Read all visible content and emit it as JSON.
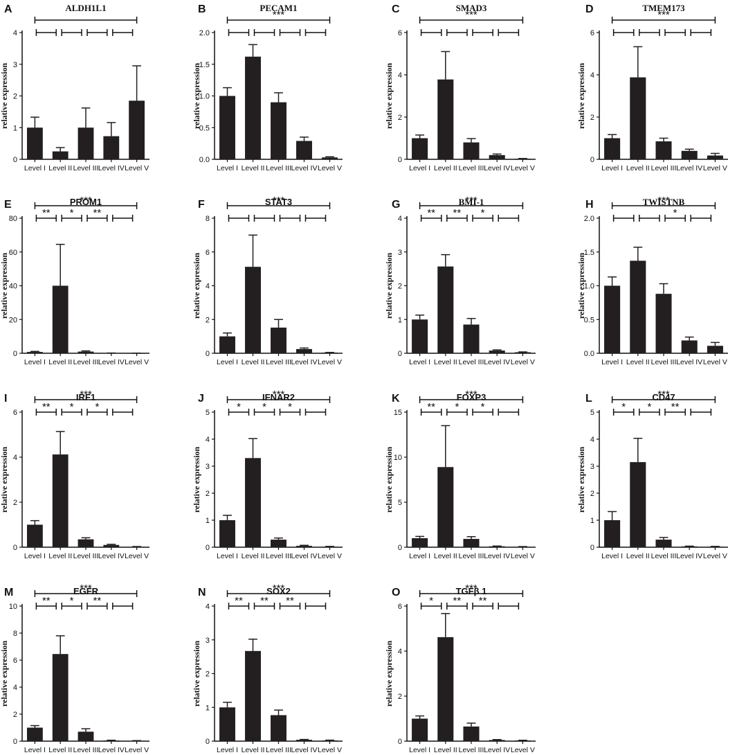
{
  "chart_data": [
    {
      "panel": "A",
      "type": "bar",
      "title": "ALDH1L1",
      "ylabel": "relative expression",
      "categories": [
        "Level I",
        "Level II",
        "Level III",
        "Level IV",
        "Level V"
      ],
      "values": [
        1.0,
        0.25,
        1.0,
        0.73,
        1.85
      ],
      "errors": [
        0.33,
        0.12,
        0.62,
        0.43,
        1.1
      ],
      "ylim": [
        0,
        4
      ],
      "yticks": [
        "0",
        "1",
        "2",
        "3",
        "4"
      ],
      "comparisons": [
        {
          "from": 0,
          "to": 4,
          "label": ""
        },
        {
          "from": 0,
          "to": 1,
          "label": ""
        },
        {
          "from": 1,
          "to": 2,
          "label": ""
        },
        {
          "from": 2,
          "to": 3,
          "label": ""
        },
        {
          "from": 3,
          "to": 4,
          "label": ""
        }
      ]
    },
    {
      "panel": "B",
      "type": "bar",
      "title": "PECAM1",
      "ylabel": "relative expression",
      "categories": [
        "Level I",
        "Level II",
        "Level III",
        "Level IV",
        "Level V"
      ],
      "values": [
        1.0,
        1.62,
        0.9,
        0.29,
        0.03
      ],
      "errors": [
        0.13,
        0.19,
        0.15,
        0.06,
        0.01
      ],
      "ylim": [
        0,
        2.0
      ],
      "yticks": [
        "0.0",
        "0.5",
        "1.0",
        "1.5",
        "2.0"
      ],
      "comparisons": [
        {
          "from": 0,
          "to": 4,
          "label": "***"
        },
        {
          "from": 0,
          "to": 1,
          "label": ""
        },
        {
          "from": 1,
          "to": 2,
          "label": ""
        },
        {
          "from": 2,
          "to": 3,
          "label": ""
        },
        {
          "from": 3,
          "to": 4,
          "label": ""
        }
      ]
    },
    {
      "panel": "C",
      "type": "bar",
      "title": "SMAD3",
      "ylabel": "relative expression",
      "categories": [
        "Level I",
        "Level II",
        "Level III",
        "Level IV",
        "Level V"
      ],
      "values": [
        1.0,
        3.78,
        0.8,
        0.2,
        0.03
      ],
      "errors": [
        0.15,
        1.32,
        0.18,
        0.05,
        0.01
      ],
      "ylim": [
        0,
        6
      ],
      "yticks": [
        "0",
        "2",
        "4",
        "6"
      ],
      "comparisons": [
        {
          "from": 0,
          "to": 4,
          "label": "***"
        },
        {
          "from": 0,
          "to": 1,
          "label": ""
        },
        {
          "from": 1,
          "to": 2,
          "label": ""
        },
        {
          "from": 2,
          "to": 3,
          "label": ""
        },
        {
          "from": 3,
          "to": 4,
          "label": ""
        }
      ]
    },
    {
      "panel": "D",
      "type": "bar",
      "title": "TMEM173",
      "ylabel": "relative expression",
      "categories": [
        "Level I",
        "Level II",
        "Level III",
        "Level IV",
        "Level V"
      ],
      "values": [
        1.0,
        3.88,
        0.85,
        0.4,
        0.18
      ],
      "errors": [
        0.17,
        1.45,
        0.15,
        0.08,
        0.1
      ],
      "ylim": [
        0,
        6
      ],
      "yticks": [
        "0",
        "2",
        "4",
        "6"
      ],
      "comparisons": [
        {
          "from": 0,
          "to": 4,
          "label": "***"
        },
        {
          "from": 0,
          "to": 1,
          "label": ""
        },
        {
          "from": 1,
          "to": 2,
          "label": ""
        },
        {
          "from": 2,
          "to": 3,
          "label": ""
        },
        {
          "from": 3,
          "to": 4,
          "label": ""
        }
      ]
    },
    {
      "panel": "E",
      "type": "bar",
      "title": "PROM1",
      "ylabel": "relative expression",
      "categories": [
        "Level I",
        "Level II",
        "Level III",
        "Level IV",
        "Level V"
      ],
      "values": [
        0.8,
        40,
        1.0,
        0.1,
        0.05
      ],
      "errors": [
        0.3,
        24.5,
        0.4,
        0.05,
        0.02
      ],
      "ylim": [
        0,
        80
      ],
      "yticks": [
        "0",
        "20",
        "40",
        "60",
        "80"
      ],
      "comparisons": [
        {
          "from": 0,
          "to": 4,
          "label": "***"
        },
        {
          "from": 0,
          "to": 1,
          "label": "**"
        },
        {
          "from": 1,
          "to": 2,
          "label": "*"
        },
        {
          "from": 2,
          "to": 3,
          "label": "**"
        },
        {
          "from": 3,
          "to": 4,
          "label": ""
        }
      ]
    },
    {
      "panel": "F",
      "type": "bar",
      "title": "STAT3",
      "ylabel": "relative expression",
      "categories": [
        "Level I",
        "Level II",
        "Level III",
        "Level IV",
        "Level V"
      ],
      "values": [
        1.0,
        5.12,
        1.52,
        0.25,
        0.04
      ],
      "errors": [
        0.2,
        1.88,
        0.48,
        0.06,
        0.01
      ],
      "ylim": [
        0,
        8
      ],
      "yticks": [
        "0",
        "2",
        "4",
        "6",
        "8"
      ],
      "comparisons": [
        {
          "from": 0,
          "to": 4,
          "label": "***"
        },
        {
          "from": 0,
          "to": 1,
          "label": ""
        },
        {
          "from": 1,
          "to": 2,
          "label": ""
        },
        {
          "from": 2,
          "to": 3,
          "label": ""
        },
        {
          "from": 3,
          "to": 4,
          "label": ""
        }
      ]
    },
    {
      "panel": "G",
      "type": "bar",
      "title": "BMI-1",
      "ylabel": "relative expression",
      "categories": [
        "Level I",
        "Level II",
        "Level III",
        "Level IV",
        "Level V"
      ],
      "values": [
        1.0,
        2.57,
        0.85,
        0.08,
        0.03
      ],
      "errors": [
        0.13,
        0.35,
        0.18,
        0.02,
        0.01
      ],
      "ylim": [
        0,
        4
      ],
      "yticks": [
        "0",
        "1",
        "2",
        "3",
        "4"
      ],
      "comparisons": [
        {
          "from": 0,
          "to": 4,
          "label": "***"
        },
        {
          "from": 0,
          "to": 1,
          "label": "**"
        },
        {
          "from": 1,
          "to": 2,
          "label": "**"
        },
        {
          "from": 2,
          "to": 3,
          "label": "*"
        },
        {
          "from": 3,
          "to": 4,
          "label": ""
        }
      ]
    },
    {
      "panel": "H",
      "type": "bar",
      "title": "TWISTNB",
      "ylabel": "relative expression",
      "categories": [
        "Level I",
        "Level II",
        "Level III",
        "Level IV",
        "Level V"
      ],
      "values": [
        1.0,
        1.37,
        0.88,
        0.19,
        0.11
      ],
      "errors": [
        0.13,
        0.2,
        0.15,
        0.05,
        0.05
      ],
      "ylim": [
        0,
        2.0
      ],
      "yticks": [
        "0.0",
        "0.5",
        "1.0",
        "1.5",
        "2.0"
      ],
      "comparisons": [
        {
          "from": 0,
          "to": 4,
          "label": "***"
        },
        {
          "from": 0,
          "to": 1,
          "label": ""
        },
        {
          "from": 1,
          "to": 2,
          "label": ""
        },
        {
          "from": 2,
          "to": 3,
          "label": "*"
        },
        {
          "from": 3,
          "to": 4,
          "label": ""
        }
      ]
    },
    {
      "panel": "I",
      "type": "bar",
      "title": "IRF1",
      "ylabel": "relative expression",
      "categories": [
        "Level I",
        "Level II",
        "Level III",
        "Level IV",
        "Level V"
      ],
      "values": [
        1.0,
        4.12,
        0.35,
        0.1,
        0.02
      ],
      "errors": [
        0.18,
        1.02,
        0.07,
        0.03,
        0.01
      ],
      "ylim": [
        0,
        6
      ],
      "yticks": [
        "0",
        "2",
        "4",
        "6"
      ],
      "comparisons": [
        {
          "from": 0,
          "to": 4,
          "label": "***"
        },
        {
          "from": 0,
          "to": 1,
          "label": "**"
        },
        {
          "from": 1,
          "to": 2,
          "label": "*"
        },
        {
          "from": 2,
          "to": 3,
          "label": "*"
        },
        {
          "from": 3,
          "to": 4,
          "label": ""
        }
      ]
    },
    {
      "panel": "J",
      "type": "bar",
      "title": "IFNAR2",
      "ylabel": "relative expression",
      "categories": [
        "Level I",
        "Level II",
        "Level III",
        "Level IV",
        "Level V"
      ],
      "values": [
        1.0,
        3.3,
        0.28,
        0.05,
        0.02
      ],
      "errors": [
        0.18,
        0.72,
        0.06,
        0.02,
        0.01
      ],
      "ylim": [
        0,
        5
      ],
      "yticks": [
        "0",
        "1",
        "2",
        "3",
        "4",
        "5"
      ],
      "comparisons": [
        {
          "from": 0,
          "to": 4,
          "label": "***"
        },
        {
          "from": 0,
          "to": 1,
          "label": "*"
        },
        {
          "from": 1,
          "to": 2,
          "label": "*"
        },
        {
          "from": 2,
          "to": 3,
          "label": "*"
        },
        {
          "from": 3,
          "to": 4,
          "label": ""
        }
      ]
    },
    {
      "panel": "K",
      "type": "bar",
      "title": "FOXP3",
      "ylabel": "relative expression",
      "categories": [
        "Level I",
        "Level II",
        "Level III",
        "Level IV",
        "Level V"
      ],
      "values": [
        1.0,
        8.9,
        0.92,
        0.1,
        0.05
      ],
      "errors": [
        0.2,
        4.6,
        0.25,
        0.03,
        0.02
      ],
      "ylim": [
        0,
        15
      ],
      "yticks": [
        "0",
        "5",
        "10",
        "15"
      ],
      "comparisons": [
        {
          "from": 0,
          "to": 4,
          "label": "***"
        },
        {
          "from": 0,
          "to": 1,
          "label": "**"
        },
        {
          "from": 1,
          "to": 2,
          "label": "*"
        },
        {
          "from": 2,
          "to": 3,
          "label": "*"
        },
        {
          "from": 3,
          "to": 4,
          "label": ""
        }
      ]
    },
    {
      "panel": "L",
      "type": "bar",
      "title": "CD47",
      "ylabel": "relative expression",
      "categories": [
        "Level I",
        "Level II",
        "Level III",
        "Level IV",
        "Level V"
      ],
      "values": [
        1.0,
        3.15,
        0.28,
        0.03,
        0.02
      ],
      "errors": [
        0.32,
        0.88,
        0.08,
        0.01,
        0.01
      ],
      "ylim": [
        0,
        5
      ],
      "yticks": [
        "0",
        "1",
        "2",
        "3",
        "4",
        "5"
      ],
      "comparisons": [
        {
          "from": 0,
          "to": 4,
          "label": "***"
        },
        {
          "from": 0,
          "to": 1,
          "label": "*"
        },
        {
          "from": 1,
          "to": 2,
          "label": "*"
        },
        {
          "from": 2,
          "to": 3,
          "label": "**"
        },
        {
          "from": 3,
          "to": 4,
          "label": ""
        }
      ]
    },
    {
      "panel": "M",
      "type": "bar",
      "title": "EGFR",
      "ylabel": "relative expression",
      "categories": [
        "Level I",
        "Level II",
        "Level III",
        "Level IV",
        "Level V"
      ],
      "values": [
        1.0,
        6.45,
        0.7,
        0.05,
        0.03
      ],
      "errors": [
        0.15,
        1.35,
        0.22,
        0.02,
        0.01
      ],
      "ylim": [
        0,
        10
      ],
      "yticks": [
        "0",
        "2",
        "4",
        "6",
        "8",
        "10"
      ],
      "comparisons": [
        {
          "from": 0,
          "to": 4,
          "label": "***"
        },
        {
          "from": 0,
          "to": 1,
          "label": "**"
        },
        {
          "from": 1,
          "to": 2,
          "label": "*"
        },
        {
          "from": 2,
          "to": 3,
          "label": "**"
        },
        {
          "from": 3,
          "to": 4,
          "label": ""
        }
      ]
    },
    {
      "panel": "N",
      "type": "bar",
      "title": "SOX2",
      "ylabel": "relative expression",
      "categories": [
        "Level I",
        "Level II",
        "Level III",
        "Level IV",
        "Level V"
      ],
      "values": [
        1.0,
        2.67,
        0.77,
        0.04,
        0.02
      ],
      "errors": [
        0.15,
        0.35,
        0.15,
        0.01,
        0.01
      ],
      "ylim": [
        0,
        4
      ],
      "yticks": [
        "0",
        "1",
        "2",
        "3",
        "4"
      ],
      "comparisons": [
        {
          "from": 0,
          "to": 4,
          "label": "***"
        },
        {
          "from": 0,
          "to": 1,
          "label": "**"
        },
        {
          "from": 1,
          "to": 2,
          "label": "**"
        },
        {
          "from": 2,
          "to": 3,
          "label": "**"
        },
        {
          "from": 3,
          "to": 4,
          "label": ""
        }
      ]
    },
    {
      "panel": "O",
      "type": "bar",
      "title": "TGFβ 1",
      "ylabel": "relative expression",
      "categories": [
        "Level I",
        "Level II",
        "Level III",
        "Level IV",
        "Level V"
      ],
      "values": [
        1.0,
        4.62,
        0.65,
        0.05,
        0.03
      ],
      "errors": [
        0.12,
        1.05,
        0.15,
        0.02,
        0.01
      ],
      "ylim": [
        0,
        6
      ],
      "yticks": [
        "0",
        "2",
        "4",
        "6"
      ],
      "comparisons": [
        {
          "from": 0,
          "to": 4,
          "label": "***"
        },
        {
          "from": 0,
          "to": 1,
          "label": "*"
        },
        {
          "from": 1,
          "to": 2,
          "label": "**"
        },
        {
          "from": 2,
          "to": 3,
          "label": "**"
        },
        {
          "from": 3,
          "to": 4,
          "label": ""
        }
      ]
    }
  ]
}
